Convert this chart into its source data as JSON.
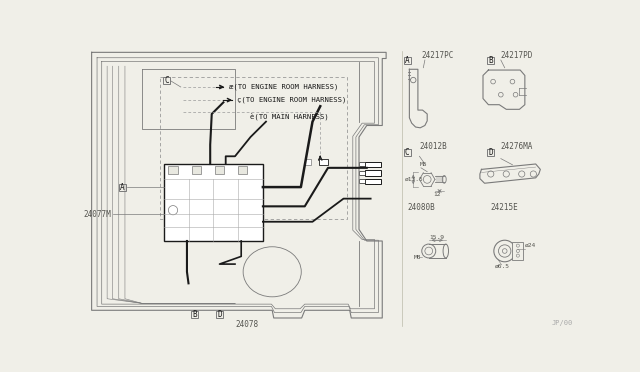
{
  "bg_color": "#f0efe8",
  "line_color": "#7a7a7a",
  "dark_line": "#1a1a1a",
  "text_color": "#555550",
  "part_numbers": {
    "main": "24077M",
    "harness": "24078",
    "partA": "24217PC",
    "partB": "24217PD",
    "partC": "24012B",
    "partD": "24276MA",
    "partE": "24080B",
    "partF": "24215E"
  },
  "watermark": "JP/00",
  "labels_left": [
    "A",
    "B",
    "C",
    "D"
  ],
  "labels_right": [
    "A",
    "B",
    "C",
    "D"
  ],
  "conn_a": "(TO ENGINE ROOM HARNESS)",
  "conn_b": "(TO ENGINE ROOM HARNESS)",
  "conn_c": "(TO MAIN HARNESS)"
}
